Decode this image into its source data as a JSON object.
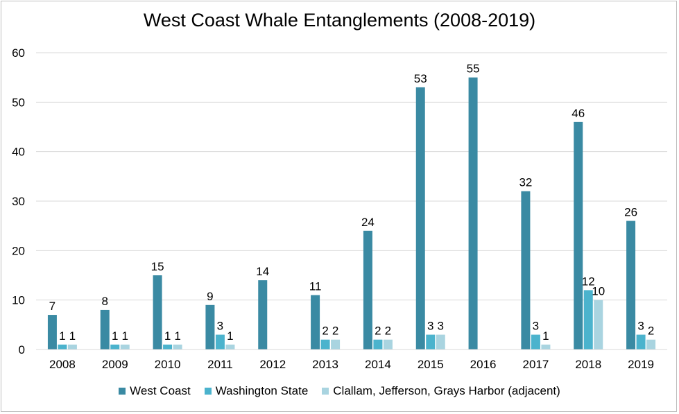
{
  "chart_data": {
    "type": "bar",
    "title": "West Coast Whale Entanglements (2008-2019)",
    "xlabel": "",
    "ylabel": "",
    "categories": [
      "2008",
      "2009",
      "2010",
      "2011",
      "2012",
      "2013",
      "2014",
      "2015",
      "2016",
      "2017",
      "2018",
      "2019"
    ],
    "series": [
      {
        "name": "West Coast",
        "color": "#3a8aa3",
        "values": [
          7,
          8,
          15,
          9,
          14,
          11,
          24,
          53,
          55,
          32,
          46,
          26
        ]
      },
      {
        "name": "Washington State",
        "color": "#4bb3cd",
        "values": [
          1,
          1,
          1,
          3,
          null,
          2,
          2,
          3,
          null,
          3,
          12,
          3
        ]
      },
      {
        "name": "Clallam, Jefferson, Grays Harbor (adjacent)",
        "color": "#a9d4e0",
        "values": [
          1,
          1,
          1,
          1,
          null,
          2,
          2,
          3,
          null,
          1,
          10,
          2
        ]
      }
    ],
    "ylim": [
      0,
      60
    ],
    "yticks": [
      0,
      10,
      20,
      30,
      40,
      50,
      60
    ],
    "grid": true,
    "legend_position": "bottom"
  }
}
